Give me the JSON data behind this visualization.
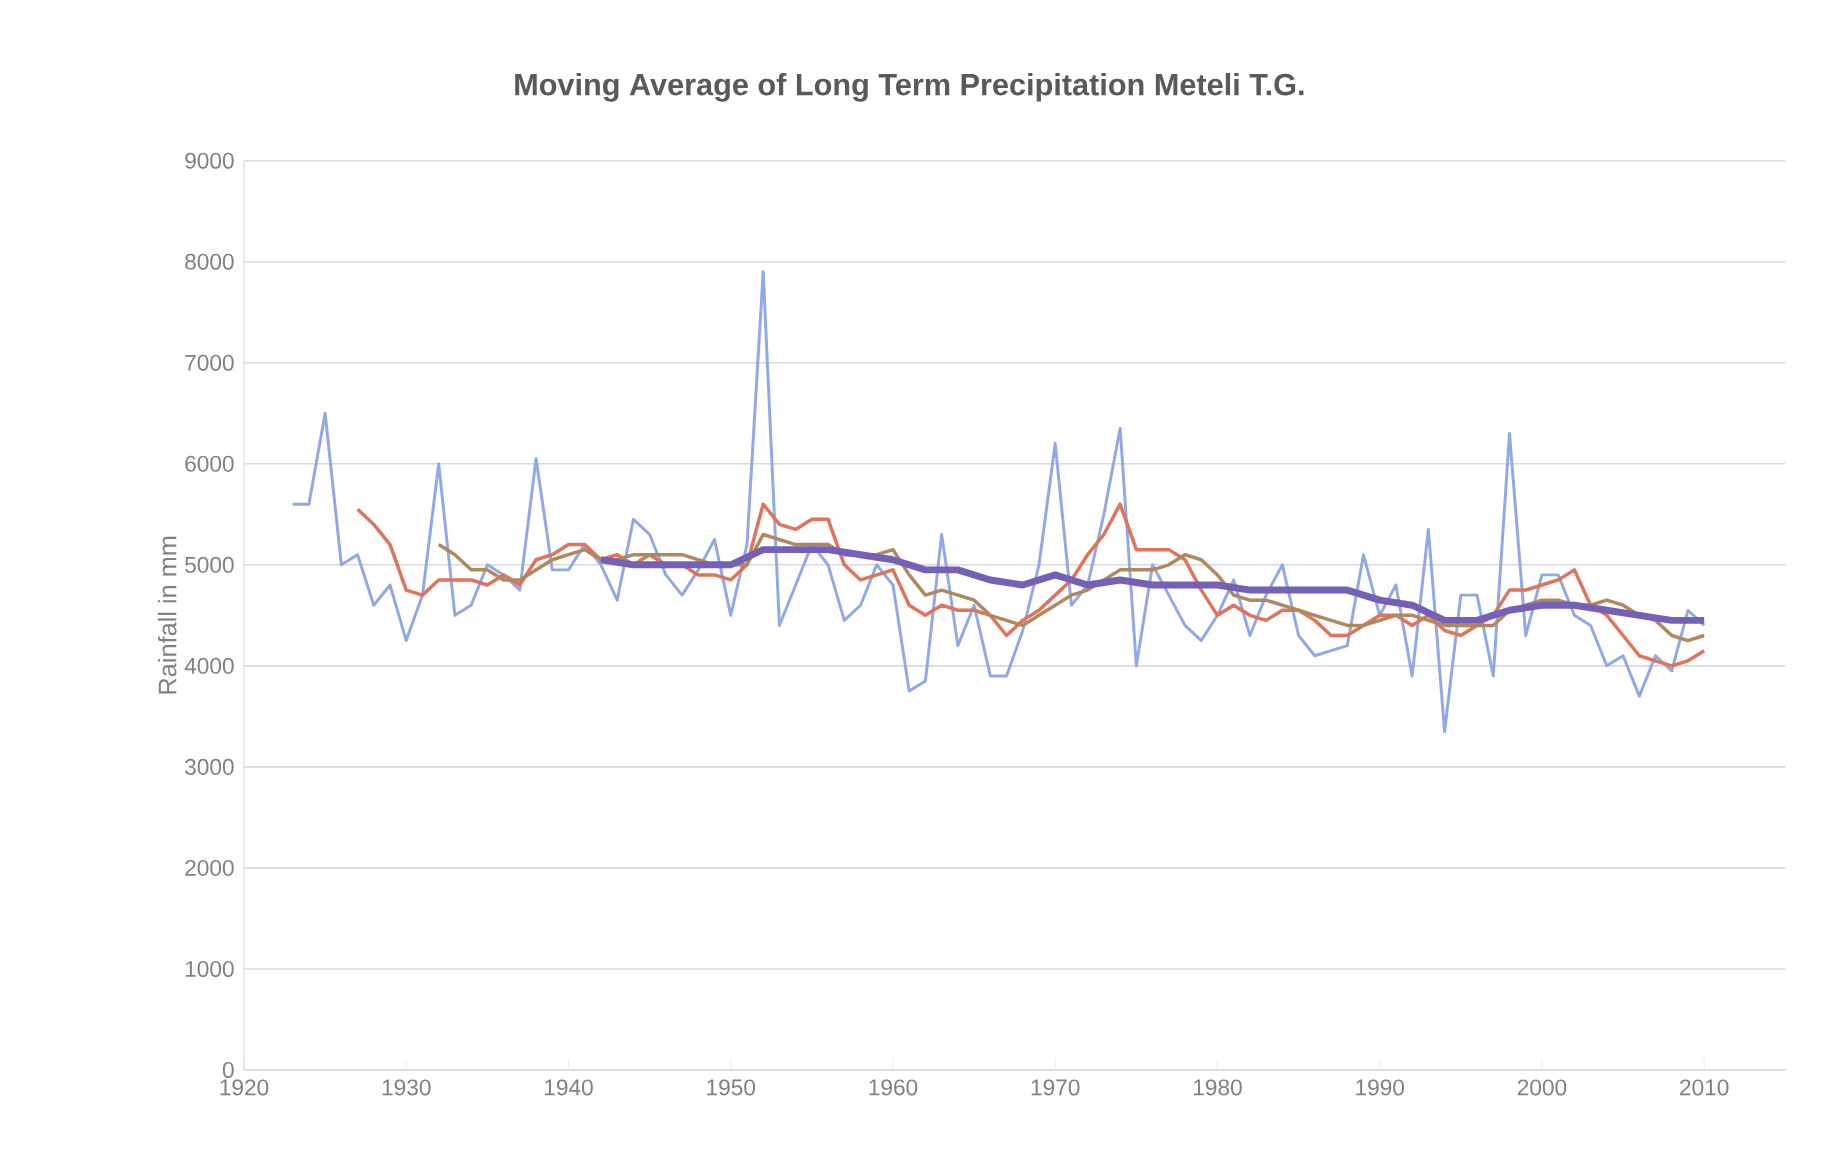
{
  "chart_data": {
    "type": "line",
    "title": "Moving Average of Long Term Precipitation Meteli T.G.",
    "ylabel": "Rainfall in mm",
    "xlim": [
      1920,
      2015
    ],
    "xticks": [
      1920,
      1930,
      1940,
      1950,
      1960,
      1970,
      1980,
      1990,
      2000,
      2010
    ],
    "ylim": [
      0,
      9000
    ],
    "yticks": [
      0,
      1000,
      2000,
      3000,
      4000,
      5000,
      6000,
      7000,
      8000,
      9000
    ],
    "grid": "y",
    "line_style": "solid",
    "series": [
      {
        "color": "#8fa8e8",
        "x": [
          1923,
          1924,
          1925,
          1926,
          1927,
          1928,
          1929,
          1930,
          1931,
          1932,
          1933,
          1934,
          1935,
          1936,
          1937,
          1938,
          1939,
          1940,
          1941,
          1942,
          1943,
          1944,
          1945,
          1946,
          1947,
          1948,
          1949,
          1950,
          1951,
          1952,
          1953,
          1954,
          1955,
          1956,
          1957,
          1958,
          1959,
          1960,
          1961,
          1962,
          1963,
          1964,
          1965,
          1966,
          1967,
          1968,
          1969,
          1970,
          1971,
          1972,
          1973,
          1974,
          1975,
          1976,
          1977,
          1978,
          1979,
          1980,
          1981,
          1982,
          1983,
          1984,
          1985,
          1986,
          1987,
          1988,
          1989,
          1990,
          1991,
          1992,
          1993,
          1994,
          1995,
          1996,
          1997,
          1998,
          1999,
          2000,
          2001,
          2002,
          2003,
          2004,
          2005,
          2006,
          2007,
          2008,
          2009,
          2010
        ],
        "values": [
          5600,
          5600,
          6500,
          5000,
          5100,
          4600,
          4800,
          4250,
          4700,
          6000,
          4500,
          4600,
          5000,
          4900,
          4750,
          6050,
          4950,
          4950,
          5200,
          5000,
          4650,
          5450,
          5300,
          4900,
          4700,
          4950,
          5250,
          4500,
          5200,
          7900,
          4400,
          4800,
          5200,
          5000,
          4450,
          4600,
          5000,
          4800,
          3750,
          3850,
          5300,
          4200,
          4600,
          3900,
          3900,
          4350,
          5000,
          6200,
          4600,
          4800,
          5500,
          6350,
          4000,
          5000,
          4700,
          4400,
          4250,
          4500,
          4850,
          4300,
          4700,
          5000,
          4300,
          4100,
          4150,
          4200,
          5100,
          4500,
          4800,
          3900,
          5350,
          3350,
          4700,
          4700,
          3900,
          6300,
          4300,
          4900,
          4900,
          4500,
          4400,
          4000,
          4100,
          3700,
          4100,
          3950,
          4550,
          4400
        ]
      },
      {
        "color": "#e0735a",
        "x": [
          1927,
          1928,
          1929,
          1930,
          1931,
          1932,
          1933,
          1934,
          1935,
          1936,
          1937,
          1938,
          1939,
          1940,
          1941,
          1942,
          1943,
          1944,
          1945,
          1946,
          1947,
          1948,
          1949,
          1950,
          1951,
          1952,
          1953,
          1954,
          1955,
          1956,
          1957,
          1958,
          1959,
          1960,
          1961,
          1962,
          1963,
          1964,
          1965,
          1966,
          1967,
          1968,
          1969,
          1970,
          1971,
          1972,
          1973,
          1974,
          1975,
          1976,
          1977,
          1978,
          1979,
          1980,
          1981,
          1982,
          1983,
          1984,
          1985,
          1986,
          1987,
          1988,
          1989,
          1990,
          1991,
          1992,
          1993,
          1994,
          1995,
          1996,
          1997,
          1998,
          1999,
          2000,
          2001,
          2002,
          2003,
          2004,
          2005,
          2006,
          2007,
          2008,
          2009,
          2010
        ],
        "values": [
          5550,
          5400,
          5200,
          4750,
          4700,
          4850,
          4850,
          4850,
          4800,
          4900,
          4800,
          5050,
          5100,
          5200,
          5200,
          5050,
          5100,
          5000,
          5100,
          5000,
          5000,
          4900,
          4900,
          4850,
          5000,
          5600,
          5400,
          5350,
          5450,
          5450,
          5000,
          4850,
          4900,
          4950,
          4600,
          4500,
          4600,
          4550,
          4550,
          4500,
          4300,
          4450,
          4550,
          4700,
          4850,
          5100,
          5300,
          5600,
          5150,
          5150,
          5150,
          5050,
          4750,
          4500,
          4600,
          4500,
          4450,
          4550,
          4550,
          4450,
          4300,
          4300,
          4400,
          4500,
          4500,
          4400,
          4500,
          4350,
          4300,
          4400,
          4500,
          4750,
          4750,
          4800,
          4850,
          4950,
          4600,
          4500,
          4300,
          4100,
          4050,
          4000,
          4050,
          4150
        ]
      },
      {
        "color": "#b0885c",
        "x": [
          1932,
          1933,
          1934,
          1935,
          1936,
          1937,
          1938,
          1939,
          1940,
          1941,
          1942,
          1943,
          1944,
          1945,
          1946,
          1947,
          1948,
          1949,
          1950,
          1951,
          1952,
          1953,
          1954,
          1955,
          1956,
          1957,
          1958,
          1959,
          1960,
          1961,
          1962,
          1963,
          1964,
          1965,
          1966,
          1967,
          1968,
          1969,
          1970,
          1971,
          1972,
          1973,
          1974,
          1975,
          1976,
          1977,
          1978,
          1979,
          1980,
          1981,
          1982,
          1983,
          1984,
          1985,
          1986,
          1987,
          1988,
          1989,
          1990,
          1991,
          1992,
          1993,
          1994,
          1995,
          1996,
          1997,
          1998,
          1999,
          2000,
          2001,
          2002,
          2003,
          2004,
          2005,
          2006,
          2007,
          2008,
          2009,
          2010
        ],
        "values": [
          5200,
          5100,
          4950,
          4950,
          4850,
          4850,
          4950,
          5050,
          5100,
          5150,
          5050,
          5050,
          5100,
          5100,
          5100,
          5100,
          5050,
          5000,
          5000,
          5000,
          5300,
          5250,
          5200,
          5200,
          5200,
          5100,
          null,
          5100,
          5150,
          4900,
          4700,
          4750,
          4700,
          4650,
          4500,
          4450,
          4400,
          4500,
          4600,
          4700,
          4750,
          4850,
          4950,
          4950,
          4950,
          5000,
          5100,
          5050,
          4900,
          4700,
          4650,
          4650,
          4600,
          4550,
          4500,
          4450,
          4400,
          4400,
          4450,
          4500,
          4500,
          4450,
          4400,
          4400,
          4400,
          4400,
          4550,
          4600,
          4650,
          4650,
          4600,
          4600,
          4650,
          4600,
          4500,
          4450,
          4300,
          4250,
          4300
        ]
      },
      {
        "color": "#7560b8",
        "x": [
          1942,
          1944,
          1946,
          1948,
          1950,
          1952,
          1954,
          1956,
          1958,
          1960,
          1962,
          1964,
          1966,
          1968,
          1970,
          1972,
          1974,
          1976,
          1978,
          1980,
          1982,
          1984,
          1986,
          1988,
          1990,
          1992,
          1994,
          1996,
          1998,
          2000,
          2002,
          2004,
          2006,
          2008,
          2010
        ],
        "values": [
          5050,
          5000,
          5000,
          5000,
          5000,
          5150,
          5150,
          5150,
          5100,
          5050,
          4950,
          4950,
          4850,
          4800,
          4900,
          4800,
          4850,
          4800,
          4800,
          4800,
          4750,
          4750,
          4750,
          4750,
          4650,
          4600,
          4450,
          4450,
          4550,
          4600,
          4600,
          4550,
          4500,
          4450,
          4450
        ]
      }
    ]
  }
}
